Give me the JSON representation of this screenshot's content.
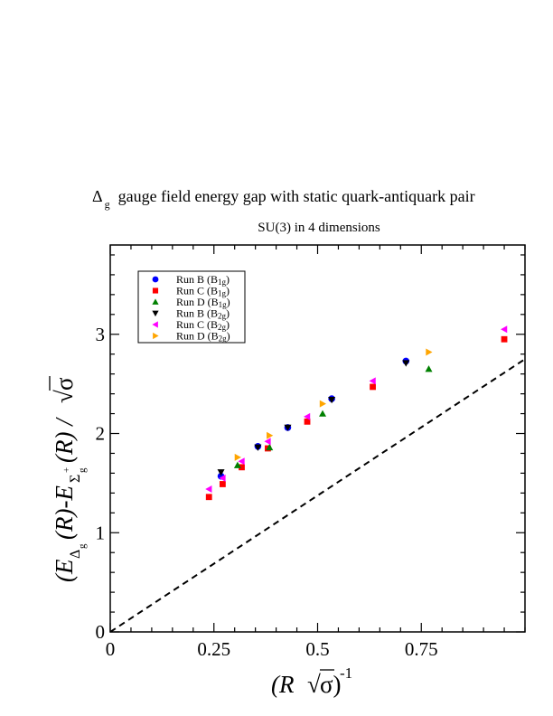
{
  "chart_data": {
    "type": "scatter",
    "title": {
      "symbol": "Δ",
      "subscript": "g",
      "text": "gauge field energy gap with static quark-antiquark pair"
    },
    "subtitle": "SU(3) in 4 dimensions",
    "xlabel": "(R √σ)^-1",
    "ylabel": "(E_Δg(R) - E_Σg+(R)) / √σ",
    "xlim": [
      0,
      1.0
    ],
    "ylim": [
      0,
      3.9
    ],
    "x_ticks": [
      {
        "value": 0,
        "label": "0"
      },
      {
        "value": 0.25,
        "label": "0.25"
      },
      {
        "value": 0.5,
        "label": "0.5"
      },
      {
        "value": 0.75,
        "label": "0.75"
      }
    ],
    "y_ticks": [
      {
        "value": 0,
        "label": "0"
      },
      {
        "value": 1,
        "label": "1"
      },
      {
        "value": 2,
        "label": "2"
      },
      {
        "value": 3,
        "label": "3"
      }
    ],
    "grid": false,
    "legend_position": "top-left",
    "reference_line": {
      "style": "dashed",
      "slope": 2.75,
      "intercept": 0
    },
    "series": [
      {
        "name": "Run B (B1g)",
        "label_main": "Run B (B",
        "label_sub": "1g",
        "marker": "circle",
        "color": "#0000ff",
        "points": [
          [
            0.267,
            1.57
          ],
          [
            0.356,
            1.87
          ],
          [
            0.428,
            2.06
          ],
          [
            0.534,
            2.35
          ],
          [
            0.713,
            2.73
          ]
        ]
      },
      {
        "name": "Run C (B1g)",
        "label_main": "Run C (B",
        "label_sub": "1g",
        "marker": "square",
        "color": "#ff0000",
        "points": [
          [
            0.238,
            1.36
          ],
          [
            0.271,
            1.49
          ],
          [
            0.317,
            1.66
          ],
          [
            0.38,
            1.85
          ],
          [
            0.475,
            2.12
          ],
          [
            0.633,
            2.47
          ],
          [
            0.95,
            2.95
          ]
        ]
      },
      {
        "name": "Run D (B1g)",
        "label_main": "Run D (B",
        "label_sub": "1g",
        "marker": "triangle-up",
        "color": "#008000",
        "points": [
          [
            0.307,
            1.68
          ],
          [
            0.384,
            1.86
          ],
          [
            0.512,
            2.2
          ],
          [
            0.768,
            2.65
          ]
        ]
      },
      {
        "name": "Run B (B2g)",
        "label_main": "Run B (B",
        "label_sub": "2g",
        "marker": "triangle-down",
        "color": "#000000",
        "points": [
          [
            0.267,
            1.61
          ],
          [
            0.356,
            1.86
          ],
          [
            0.428,
            2.06
          ],
          [
            0.534,
            2.34
          ],
          [
            0.713,
            2.71
          ]
        ]
      },
      {
        "name": "Run C (B2g)",
        "label_main": "Run C (B",
        "label_sub": "2g",
        "marker": "triangle-left",
        "color": "#ff00ff",
        "points": [
          [
            0.238,
            1.44
          ],
          [
            0.271,
            1.55
          ],
          [
            0.317,
            1.72
          ],
          [
            0.38,
            1.92
          ],
          [
            0.475,
            2.17
          ],
          [
            0.633,
            2.53
          ],
          [
            0.95,
            3.05
          ]
        ]
      },
      {
        "name": "Run D (B2g)",
        "label_main": "Run D (B",
        "label_sub": "2g",
        "marker": "triangle-right",
        "color": "#ffa500",
        "points": [
          [
            0.307,
            1.76
          ],
          [
            0.384,
            1.98
          ],
          [
            0.512,
            2.3
          ],
          [
            0.768,
            2.82
          ]
        ]
      }
    ]
  }
}
